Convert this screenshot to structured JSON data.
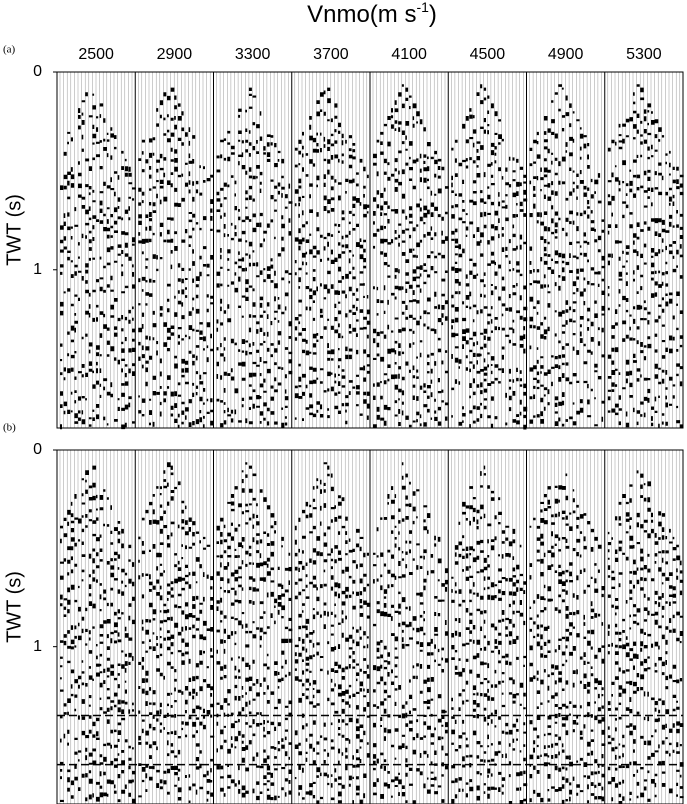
{
  "chart_data": [
    {
      "type": "wiggle",
      "panel_label": "(a)",
      "title": [
        "Vnmo(m s",
        "-1",
        ")"
      ],
      "categories": [
        2500,
        2900,
        3300,
        3700,
        4100,
        4500,
        4900,
        5300
      ],
      "ylabel": "TWT (s)",
      "ylim": [
        0,
        1.8
      ],
      "yticks": [
        0,
        1
      ],
      "hlines": []
    },
    {
      "type": "wiggle",
      "panel_label": "(b)",
      "ylabel": "TWT (s)",
      "ylim": [
        0,
        1.8
      ],
      "yticks": [
        0,
        1
      ],
      "hlines": [
        1.35,
        1.6
      ]
    }
  ]
}
